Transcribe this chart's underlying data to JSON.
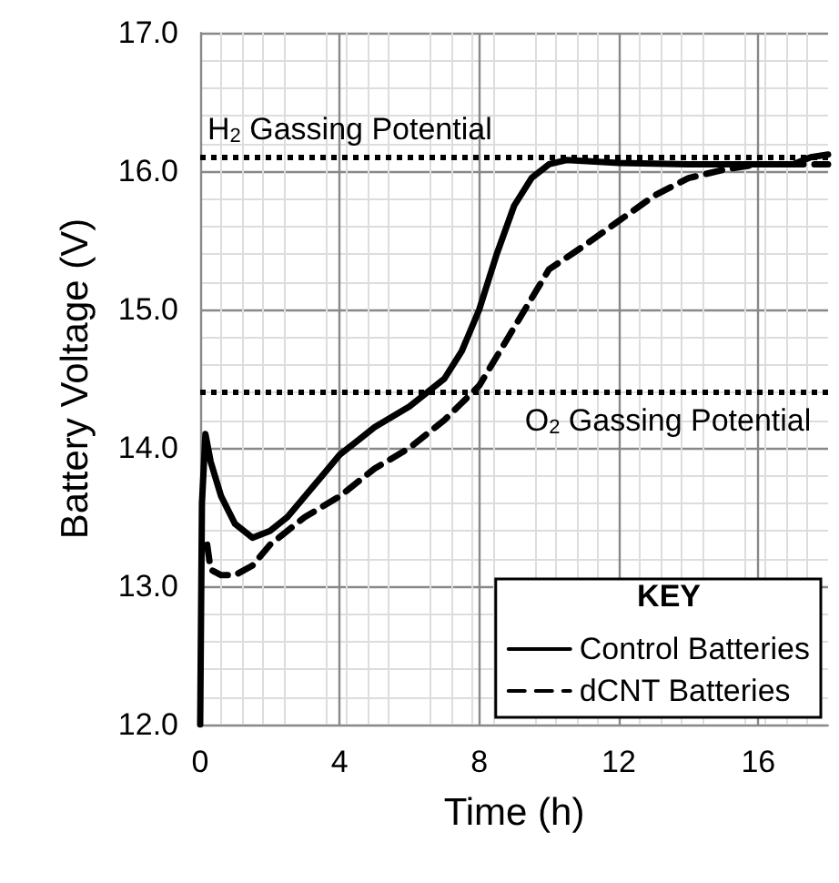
{
  "chart_data": {
    "type": "line",
    "xlabel": "Time (h)",
    "ylabel": "Battery Voltage (V)",
    "legend_title": "KEY",
    "legend": "bottom right",
    "grid": true,
    "xlim": [
      0,
      18
    ],
    "xticks": [
      0,
      4,
      8,
      12,
      16
    ],
    "ylim": [
      12,
      17
    ],
    "yticks": [
      {
        "value": 12,
        "label": "12.0"
      },
      {
        "value": 13,
        "label": "13.0"
      },
      {
        "value": 14,
        "label": "14.0"
      },
      {
        "value": 15,
        "label": "15.0"
      },
      {
        "value": 16,
        "label": "16.0"
      },
      {
        "value": 17,
        "label": "17.0"
      }
    ],
    "ref_lines": [
      {
        "axis": "y",
        "value": 16.1,
        "label": "H$_{2}$ Gassing Potential",
        "color": "#000000",
        "line_style": "dotted"
      },
      {
        "axis": "y",
        "value": 14.4,
        "label": "O$_{2}$ Gassing Potential",
        "color": "#000000",
        "line_style": "dotted"
      }
    ],
    "series": [
      {
        "name": "Control Batteries",
        "color": "#000000",
        "line_style": "solid",
        "x": [
          0,
          0.05,
          0.15,
          0.3,
          0.6,
          1,
          1.5,
          2,
          2.5,
          3,
          3.5,
          4,
          4.5,
          5,
          6,
          7,
          7.5,
          8,
          8.5,
          9,
          9.5,
          10,
          10.5,
          12,
          14,
          16,
          17,
          17.5,
          18
        ],
        "values": [
          12.0,
          13.6,
          14.1,
          13.9,
          13.65,
          13.45,
          13.35,
          13.4,
          13.5,
          13.65,
          13.8,
          13.95,
          14.05,
          14.15,
          14.3,
          14.5,
          14.7,
          15.0,
          15.4,
          15.75,
          15.95,
          16.05,
          16.08,
          16.06,
          16.05,
          16.05,
          16.05,
          16.1,
          16.12
        ]
      },
      {
        "name": "dCNT Batteries",
        "color": "#000000",
        "line_style": "dashed",
        "x": [
          0.2,
          0.3,
          0.6,
          1,
          1.5,
          2,
          3,
          4,
          5,
          6,
          7,
          8,
          9,
          10,
          11,
          12,
          13,
          14,
          15,
          16,
          17,
          18
        ],
        "values": [
          13.3,
          13.12,
          13.08,
          13.08,
          13.15,
          13.3,
          13.5,
          13.65,
          13.85,
          14.0,
          14.2,
          14.45,
          14.87,
          15.29,
          15.46,
          15.64,
          15.82,
          15.95,
          16.01,
          16.05,
          16.05,
          16.05
        ]
      }
    ]
  }
}
